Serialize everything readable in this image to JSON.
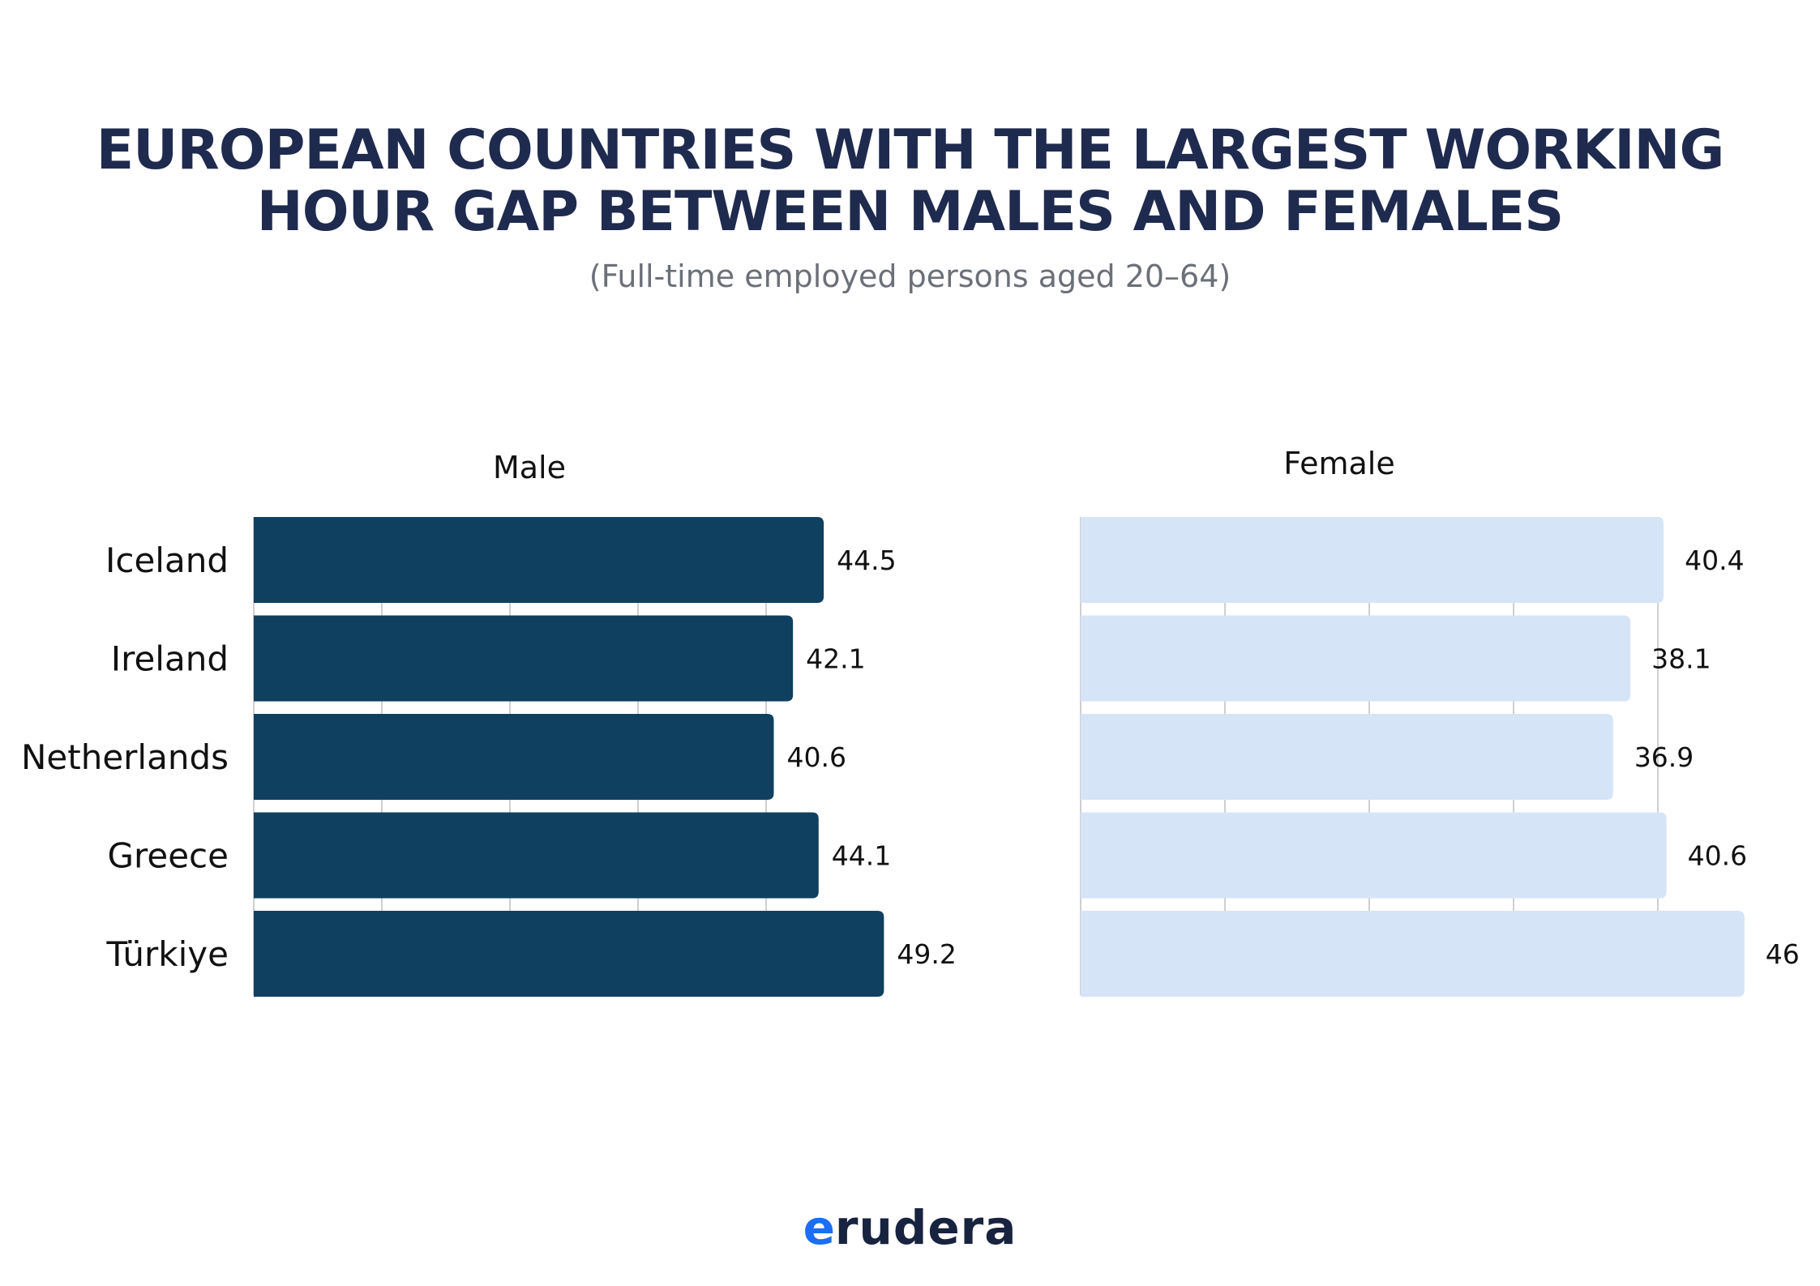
{
  "title_line1": "EUROPEAN COUNTRIES WITH THE LARGEST WORKING",
  "title_line2": "HOUR GAP BETWEEN MALES AND FEMALES",
  "subtitle": "(Full-time employed persons aged 20–64)",
  "logo": {
    "accent": "e",
    "rest": "rudera"
  },
  "colors": {
    "male": "#0f405f",
    "female": "#d6e4f8",
    "title": "#1f2a4f",
    "grid": "#cfcfcf"
  },
  "chart_data": [
    {
      "type": "bar",
      "orientation": "horizontal",
      "title": "Male",
      "categories": [
        "Iceland",
        "Ireland",
        "Netherlands",
        "Greece",
        "Türkiye"
      ],
      "values": [
        44.5,
        42.1,
        40.6,
        44.1,
        49.2
      ],
      "xlim": [
        0,
        50
      ],
      "grid": true
    },
    {
      "type": "bar",
      "orientation": "horizontal",
      "title": "Female",
      "categories": [
        "Iceland",
        "Ireland",
        "Netherlands",
        "Greece",
        "Türkiye"
      ],
      "values": [
        40.4,
        38.1,
        36.9,
        40.6,
        46
      ],
      "xlim": [
        0,
        50
      ],
      "grid": true
    }
  ]
}
